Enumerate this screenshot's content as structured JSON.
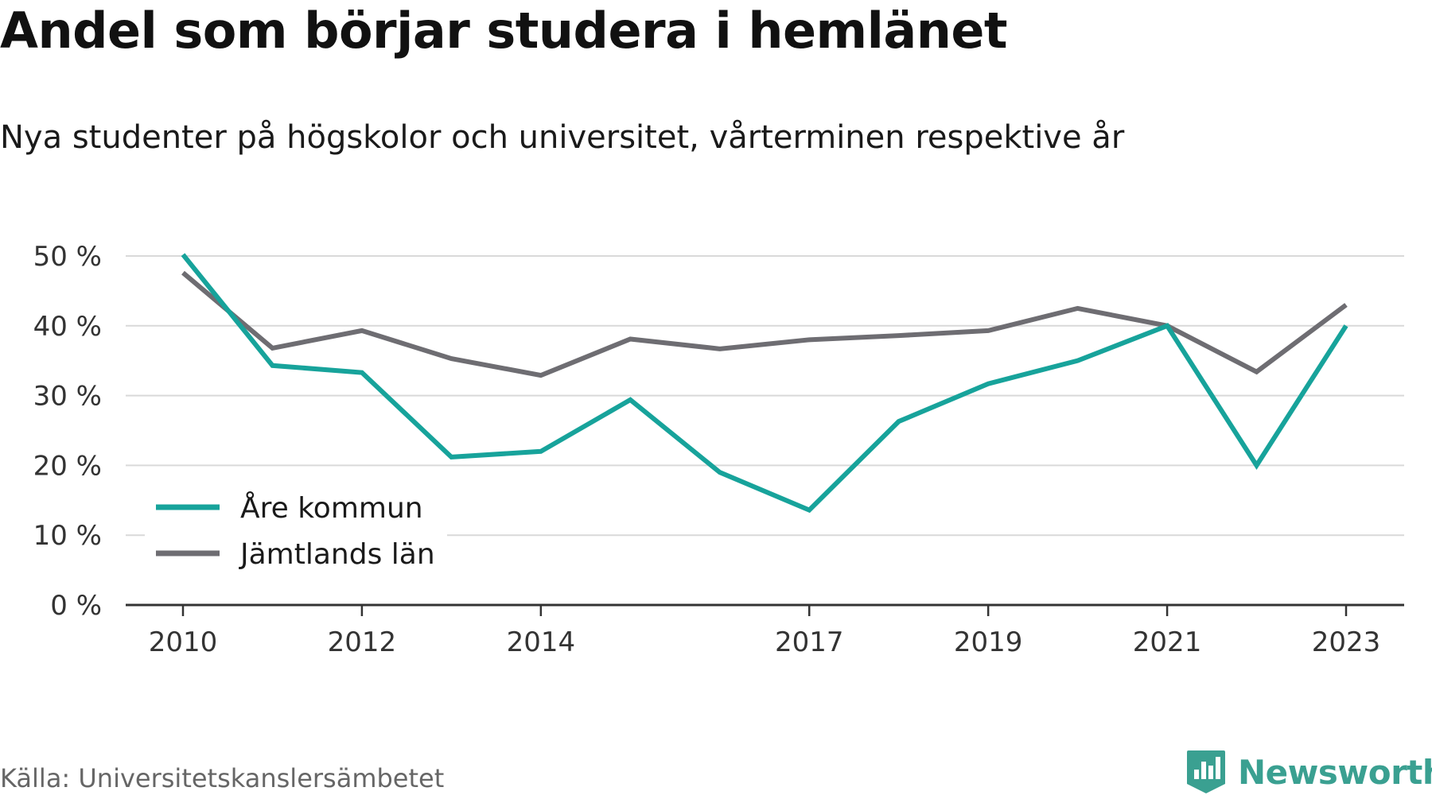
{
  "chart_data": {
    "type": "line",
    "title": "Andel som börjar studera i hemlänet",
    "subtitle": "Nya studenter på högskolor och universitet, vårterminen respektive år",
    "x": [
      2010,
      2011,
      2012,
      2013,
      2014,
      2015,
      2016,
      2017,
      2018,
      2019,
      2020,
      2021,
      2022,
      2023
    ],
    "x_tick_labels": [
      "2010",
      "2012",
      "2014",
      "2017",
      "2019",
      "2021",
      "2023"
    ],
    "y_tick_labels": [
      "0 %",
      "10 %",
      "20 %",
      "30 %",
      "40 %",
      "50 %"
    ],
    "ylim": [
      0,
      50
    ],
    "grid": true,
    "legend_position": "bottom-left",
    "series": [
      {
        "name": "Åre kommun",
        "color": "#17a39b",
        "values": [
          50.2,
          34.3,
          33.3,
          21.2,
          22.0,
          29.4,
          19.0,
          13.6,
          26.3,
          31.7,
          35.0,
          40.0,
          20.0,
          40.0
        ]
      },
      {
        "name": "Jämtlands län",
        "color": "#6e6d72",
        "values": [
          47.6,
          36.8,
          39.3,
          35.3,
          32.9,
          38.1,
          36.7,
          38.0,
          38.6,
          39.3,
          42.5,
          40.0,
          33.4,
          43.0
        ]
      }
    ]
  },
  "source": "Källa: Universitetskanslersämbetet",
  "brand": "Newsworthy",
  "colors": {
    "brand": "#3aa091",
    "grid": "#d9d9d9",
    "axis": "#333333"
  },
  "icons": {
    "brand_logo": "newsworthy-logo-icon"
  }
}
